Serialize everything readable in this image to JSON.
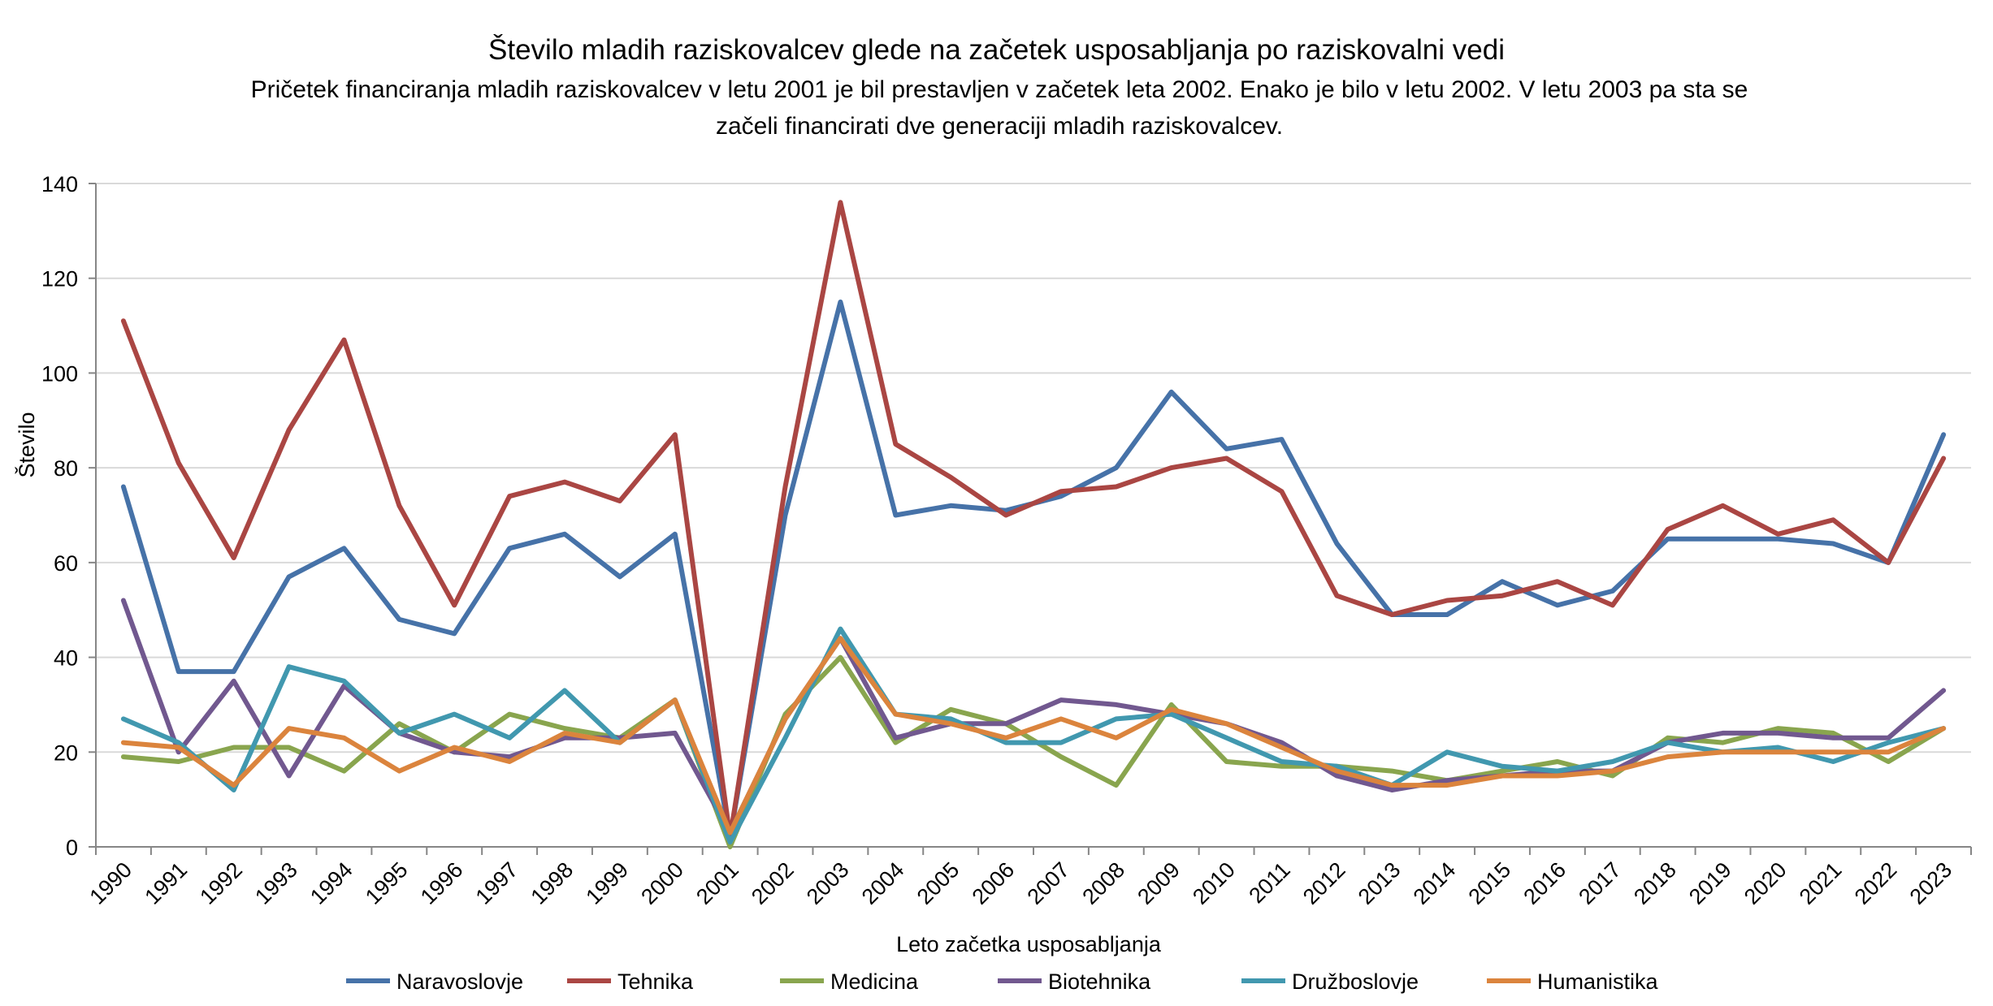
{
  "chart_data": {
    "type": "line",
    "title": "Število mladih raziskovalcev glede na začetek usposabljanja po raziskovalni vedi",
    "subtitle": "Pričetek financiranja mladih raziskovalcev v letu 2001 je bil prestavljen v začetek leta 2002. Enako je bilo v letu 2002. V letu 2003 pa sta se začeli financirati dve generaciji mladih raziskovalcev.",
    "xlabel": "Leto začetka usposabljanja",
    "ylabel": "Število",
    "ylim": [
      0,
      140
    ],
    "yticks": [
      "0",
      "20",
      "40",
      "60",
      "80",
      "100",
      "120",
      "140"
    ],
    "categories": [
      "1990",
      "1991",
      "1992",
      "1993",
      "1994",
      "1995",
      "1996",
      "1997",
      "1998",
      "1999",
      "2000",
      "2001",
      "2002",
      "2003",
      "2004",
      "2005",
      "2006",
      "2007",
      "2008",
      "2009",
      "2010",
      "2011",
      "2012",
      "2013",
      "2014",
      "2015",
      "2016",
      "2017",
      "2018",
      "2019",
      "2020",
      "2021",
      "2022",
      "2023"
    ],
    "grid": true,
    "legend_position": "bottom",
    "series": [
      {
        "name": "Naravoslovje",
        "color": "#4672A8",
        "values": [
          76,
          37,
          37,
          57,
          63,
          48,
          45,
          63,
          66,
          57,
          66,
          2,
          70,
          115,
          70,
          72,
          71,
          74,
          80,
          96,
          84,
          86,
          64,
          49,
          49,
          56,
          51,
          54,
          65,
          65,
          65,
          64,
          60,
          87
        ]
      },
      {
        "name": "Tehnika",
        "color": "#AA4643",
        "values": [
          111,
          81,
          61,
          88,
          107,
          72,
          51,
          74,
          77,
          73,
          87,
          2,
          76,
          136,
          85,
          78,
          70,
          75,
          76,
          80,
          82,
          75,
          53,
          49,
          52,
          53,
          56,
          51,
          67,
          72,
          66,
          69,
          60,
          82
        ]
      },
      {
        "name": "Medicina",
        "color": "#89A54E",
        "values": [
          19,
          18,
          21,
          21,
          16,
          26,
          20,
          28,
          25,
          23,
          31,
          0,
          28,
          40,
          22,
          29,
          26,
          19,
          13,
          30,
          18,
          17,
          17,
          16,
          14,
          16,
          18,
          15,
          23,
          22,
          25,
          24,
          18,
          25
        ]
      },
      {
        "name": "Biotehnika",
        "color": "#71588F",
        "values": [
          52,
          20,
          35,
          15,
          34,
          24,
          20,
          19,
          23,
          23,
          24,
          3,
          27,
          44,
          23,
          26,
          26,
          31,
          30,
          28,
          26,
          22,
          15,
          12,
          14,
          15,
          16,
          16,
          22,
          24,
          24,
          23,
          23,
          33
        ]
      },
      {
        "name": "Družboslovje",
        "color": "#4198AF",
        "values": [
          27,
          22,
          12,
          38,
          35,
          24,
          28,
          23,
          33,
          22,
          31,
          1,
          23,
          46,
          28,
          27,
          22,
          22,
          27,
          28,
          23,
          18,
          17,
          13,
          20,
          17,
          16,
          18,
          22,
          20,
          21,
          18,
          22,
          25
        ]
      },
      {
        "name": "Humanistika",
        "color": "#DB843D",
        "values": [
          22,
          21,
          13,
          25,
          23,
          16,
          21,
          18,
          24,
          22,
          31,
          3,
          27,
          44,
          28,
          26,
          23,
          27,
          23,
          29,
          26,
          21,
          16,
          13,
          13,
          15,
          15,
          16,
          19,
          20,
          20,
          20,
          20,
          25
        ]
      }
    ]
  }
}
